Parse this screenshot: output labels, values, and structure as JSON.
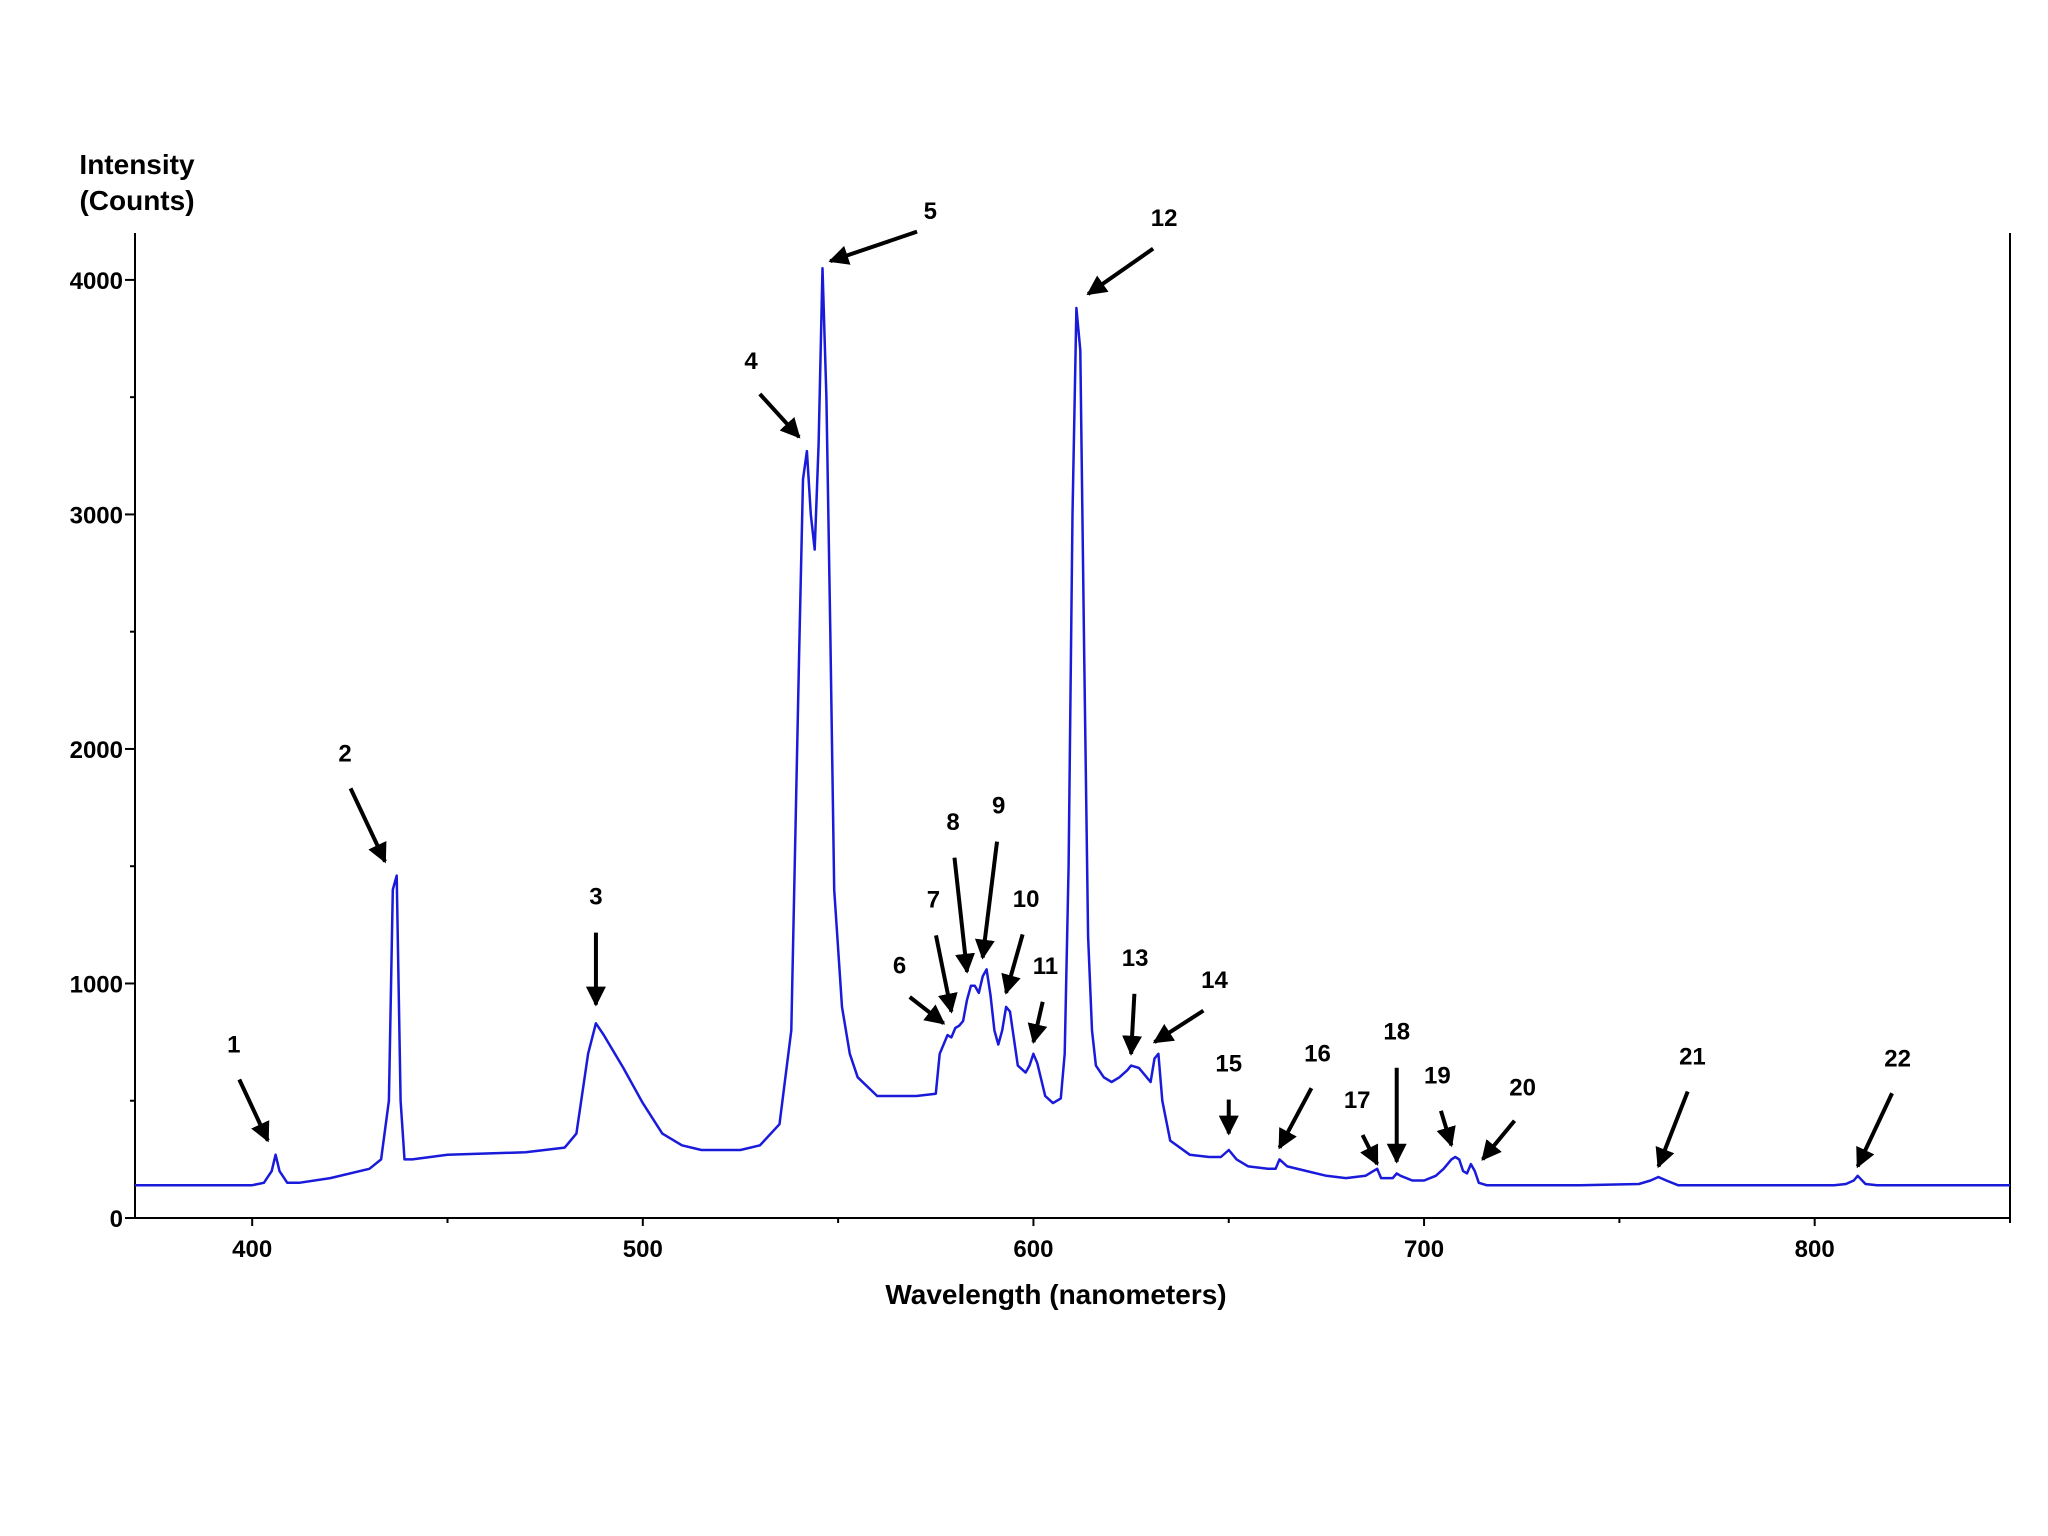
{
  "chart_data": {
    "type": "line",
    "title": "",
    "xlabel": "Wavelength (nanometers)",
    "ylabel": [
      "Intensity",
      "(Counts)"
    ],
    "xlim": [
      370,
      850
    ],
    "ylim": [
      0,
      4200
    ],
    "xticks": [
      400,
      500,
      600,
      700,
      800
    ],
    "yticks": [
      0,
      1000,
      2000,
      3000,
      4000
    ],
    "grid": false,
    "line_color": "#1a1adb",
    "series": [
      {
        "x": [
          370,
          395,
          400,
          403,
          405,
          406,
          407,
          409,
          412,
          420,
          430,
          433,
          435,
          436,
          437,
          438,
          439,
          441,
          450,
          470,
          480,
          483,
          486,
          488,
          490,
          495,
          500,
          505,
          510,
          515,
          520,
          525,
          530,
          535,
          538,
          540,
          541,
          542,
          543,
          544,
          545,
          546,
          547,
          548,
          549,
          551,
          553,
          555,
          560,
          565,
          570,
          575,
          576,
          578,
          579,
          580,
          581,
          582,
          583,
          584,
          585,
          586,
          587,
          588,
          589,
          590,
          591,
          592,
          593,
          594,
          596,
          598,
          599,
          600,
          601,
          603,
          605,
          607,
          608,
          609,
          610,
          611,
          612,
          613,
          614,
          615,
          616,
          618,
          620,
          622,
          624,
          625,
          627,
          629,
          630,
          631,
          632,
          633,
          635,
          640,
          645,
          648,
          650,
          652,
          655,
          660,
          662,
          663,
          665,
          670,
          675,
          680,
          685,
          687,
          688,
          689,
          692,
          693,
          694,
          697,
          700,
          703,
          705,
          707,
          708,
          709,
          710,
          711,
          712,
          713,
          714,
          716,
          720,
          740,
          755,
          758,
          760,
          762,
          765,
          770,
          780,
          790,
          805,
          808,
          810,
          811,
          813,
          816,
          830,
          850
        ],
        "y": [
          140,
          140,
          140,
          150,
          200,
          270,
          200,
          150,
          150,
          170,
          210,
          250,
          500,
          1400,
          1460,
          500,
          250,
          250,
          270,
          280,
          300,
          360,
          700,
          830,
          780,
          640,
          490,
          360,
          310,
          290,
          290,
          290,
          310,
          400,
          800,
          2400,
          3150,
          3270,
          3000,
          2850,
          3300,
          4050,
          3500,
          2500,
          1400,
          900,
          700,
          600,
          520,
          520,
          520,
          530,
          700,
          780,
          770,
          810,
          820,
          840,
          930,
          990,
          990,
          960,
          1030,
          1060,
          950,
          800,
          740,
          800,
          900,
          880,
          650,
          620,
          650,
          700,
          660,
          520,
          490,
          510,
          700,
          1500,
          3000,
          3880,
          3700,
          2400,
          1200,
          800,
          650,
          600,
          580,
          600,
          630,
          650,
          640,
          600,
          580,
          680,
          700,
          500,
          330,
          270,
          260,
          260,
          290,
          250,
          220,
          210,
          210,
          250,
          220,
          200,
          180,
          170,
          180,
          200,
          210,
          170,
          170,
          190,
          180,
          160,
          160,
          180,
          210,
          250,
          260,
          250,
          200,
          190,
          230,
          200,
          150,
          140,
          140,
          140,
          145,
          160,
          175,
          160,
          140,
          140,
          140,
          140,
          140,
          145,
          160,
          180,
          145,
          140,
          140,
          140
        ]
      }
    ],
    "annotations": [
      {
        "label": "1",
        "x": 404,
        "y": 330
      },
      {
        "label": "2",
        "x": 434,
        "y": 1520
      },
      {
        "label": "3",
        "x": 488,
        "y": 910
      },
      {
        "label": "4",
        "x": 540,
        "y": 3330
      },
      {
        "label": "5",
        "x": 548,
        "y": 4080
      },
      {
        "label": "6",
        "x": 577,
        "y": 830
      },
      {
        "label": "7",
        "x": 579,
        "y": 880
      },
      {
        "label": "8",
        "x": 583,
        "y": 1050
      },
      {
        "label": "9",
        "x": 587,
        "y": 1110
      },
      {
        "label": "10",
        "x": 593,
        "y": 960
      },
      {
        "label": "11",
        "x": 600,
        "y": 750
      },
      {
        "label": "12",
        "x": 614,
        "y": 3940
      },
      {
        "label": "13",
        "x": 625,
        "y": 700
      },
      {
        "label": "14",
        "x": 631,
        "y": 750
      },
      {
        "label": "15",
        "x": 650,
        "y": 360
      },
      {
        "label": "16",
        "x": 663,
        "y": 300
      },
      {
        "label": "17",
        "x": 688,
        "y": 230
      },
      {
        "label": "18",
        "x": 693,
        "y": 240
      },
      {
        "label": "19",
        "x": 707,
        "y": 310
      },
      {
        "label": "20",
        "x": 715,
        "y": 250
      },
      {
        "label": "21",
        "x": 760,
        "y": 220
      },
      {
        "label": "22",
        "x": 811,
        "y": 220
      }
    ]
  }
}
